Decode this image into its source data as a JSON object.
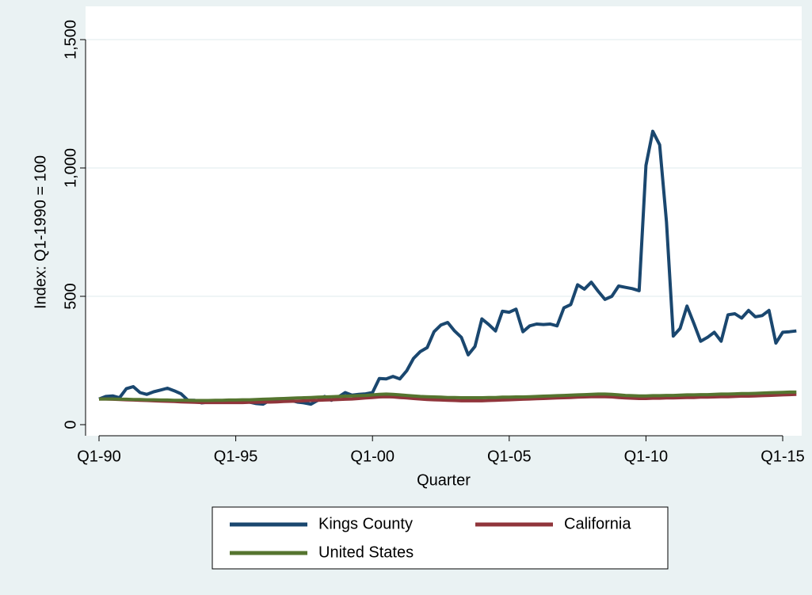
{
  "chart_data": {
    "type": "line",
    "y_label": "Index: Q1-1990 = 100",
    "x_label": "Quarter",
    "categories": [
      "Q1-90",
      null,
      null,
      null,
      null,
      null,
      null,
      null,
      null,
      null,
      null,
      null,
      null,
      null,
      null,
      null,
      null,
      null,
      null,
      null,
      "Q1-95",
      null,
      null,
      null,
      null,
      null,
      null,
      null,
      null,
      null,
      null,
      null,
      null,
      null,
      null,
      null,
      null,
      null,
      null,
      null,
      "Q1-00",
      null,
      null,
      null,
      null,
      null,
      null,
      null,
      null,
      null,
      null,
      null,
      null,
      null,
      null,
      null,
      null,
      null,
      null,
      null,
      "Q1-05",
      null,
      null,
      null,
      null,
      null,
      null,
      null,
      null,
      null,
      null,
      null,
      null,
      null,
      null,
      null,
      null,
      null,
      null,
      null,
      "Q1-10",
      null,
      null,
      null,
      null,
      null,
      null,
      null,
      null,
      null,
      null,
      null,
      null,
      null,
      null,
      null,
      null,
      null,
      null,
      null,
      "Q1-15",
      null,
      null
    ],
    "series": [
      {
        "name": "Kings County",
        "color": "#1a476f",
        "values": [
          100,
          110,
          112,
          105,
          140,
          148,
          125,
          118,
          128,
          135,
          142,
          132,
          120,
          95,
          95,
          85,
          88,
          87,
          90,
          92,
          95,
          92,
          88,
          82,
          80,
          95,
          97,
          92,
          95,
          88,
          85,
          80,
          95,
          110,
          95,
          108,
          125,
          115,
          118,
          120,
          125,
          180,
          178,
          188,
          178,
          210,
          258,
          285,
          300,
          362,
          388,
          398,
          365,
          340,
          272,
          305,
          412,
          390,
          365,
          442,
          438,
          450,
          362,
          385,
          392,
          390,
          392,
          385,
          455,
          468,
          545,
          528,
          555,
          520,
          488,
          500,
          540,
          535,
          530,
          522,
          1010,
          1143,
          1090,
          790,
          345,
          375,
          462,
          395,
          325,
          340,
          360,
          325,
          428,
          432,
          415,
          445,
          420,
          425,
          445,
          318,
          360,
          362,
          365
        ]
      },
      {
        "name": "California",
        "color": "#90353b",
        "values": [
          100,
          100,
          99,
          98,
          97,
          96,
          95,
          94,
          93,
          92,
          91,
          90,
          89,
          88,
          87,
          86,
          86,
          86,
          86,
          86,
          86,
          86,
          87,
          87,
          88,
          88,
          89,
          90,
          91,
          92,
          93,
          94,
          95,
          96,
          97,
          98,
          99,
          100,
          102,
          104,
          106,
          108,
          109,
          108,
          106,
          104,
          102,
          100,
          98,
          97,
          96,
          95,
          94,
          93,
          93,
          93,
          93,
          94,
          95,
          96,
          97,
          98,
          99,
          100,
          101,
          102,
          103,
          104,
          105,
          106,
          107,
          108,
          109,
          109,
          109,
          108,
          106,
          104,
          103,
          102,
          102,
          103,
          103,
          104,
          104,
          105,
          106,
          106,
          107,
          107,
          108,
          109,
          109,
          110,
          111,
          111,
          112,
          113,
          114,
          115,
          116,
          117,
          118
        ]
      },
      {
        "name": "United States",
        "color": "#55752f",
        "values": [
          100,
          100,
          100,
          99,
          99,
          98,
          98,
          97,
          97,
          96,
          96,
          95,
          95,
          95,
          94,
          94,
          94,
          95,
          95,
          96,
          96,
          97,
          97,
          98,
          99,
          100,
          101,
          102,
          103,
          104,
          105,
          106,
          107,
          108,
          109,
          110,
          111,
          112,
          113,
          114,
          116,
          118,
          119,
          118,
          116,
          114,
          112,
          110,
          109,
          108,
          107,
          106,
          106,
          105,
          105,
          105,
          105,
          106,
          106,
          107,
          107,
          108,
          108,
          109,
          110,
          111,
          112,
          113,
          114,
          115,
          116,
          117,
          118,
          119,
          119,
          118,
          116,
          114,
          113,
          112,
          112,
          113,
          113,
          114,
          114,
          115,
          116,
          116,
          117,
          117,
          118,
          119,
          119,
          120,
          121,
          121,
          122,
          123,
          124,
          125,
          126,
          127,
          127
        ]
      }
    ],
    "ylim": [
      0,
      1500
    ],
    "yticks": [
      0,
      500,
      {
        "value": 1000,
        "label": "1,000"
      },
      {
        "value": 1500,
        "label": "1,500"
      }
    ],
    "grid": true,
    "legend": "bottom"
  }
}
